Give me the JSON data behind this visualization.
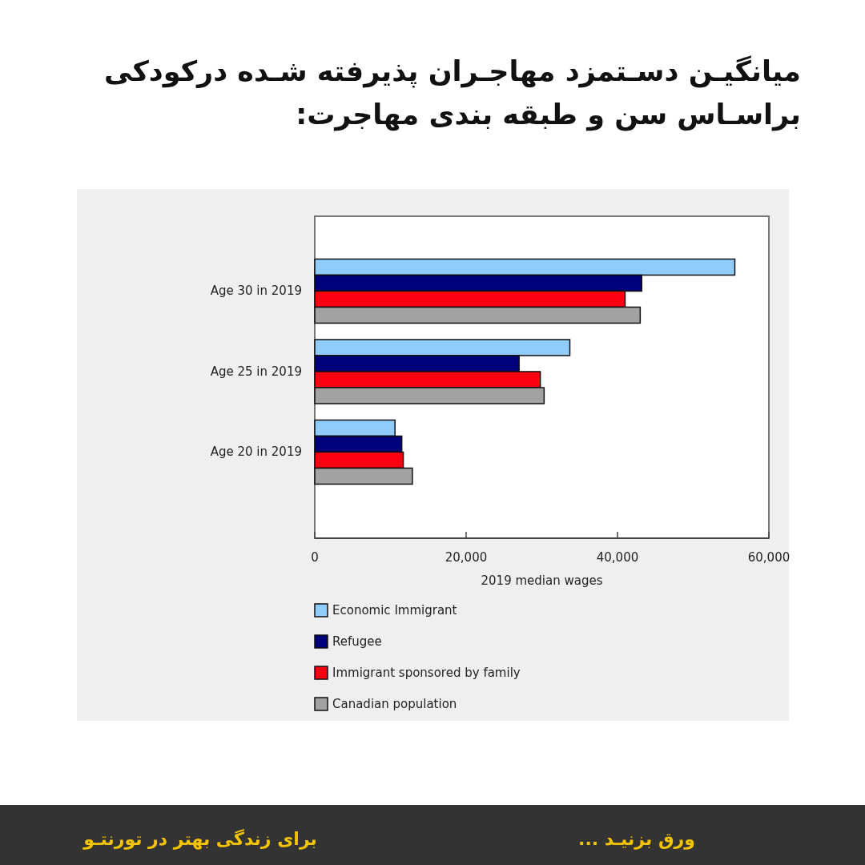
{
  "chart_data": {
    "type": "bar",
    "orientation": "horizontal",
    "title": "میانگیـن دسـتمزد مهاجـران پذیرفته شـده درکودکی براسـاس سن و طبقه بندی مهاجرت:",
    "xlabel": "2019 median wages",
    "categories": [
      "Age 30 in 2019",
      "Age 25 in 2019",
      "Age 20 in 2019"
    ],
    "series": [
      {
        "name": "Economic Immigrant",
        "color": "#8fccfc",
        "values": [
          55500,
          33700,
          10600
        ]
      },
      {
        "name": "Refugee",
        "color": "#00007b",
        "values": [
          43200,
          27000,
          11500
        ]
      },
      {
        "name": "Immigrant sponsored by family",
        "color": "#ff0012",
        "values": [
          41000,
          29800,
          11700
        ]
      },
      {
        "name": "Canadian population",
        "color": "#a2a2a2",
        "values": [
          43000,
          30300,
          12900
        ]
      }
    ],
    "xlim": [
      0,
      60000
    ],
    "xticks": [
      0,
      {
        "value": 20000,
        "label": "20,000"
      },
      {
        "value": 40000,
        "label": "40,000"
      },
      {
        "value": 60000,
        "label": "60,000"
      }
    ],
    "legend": "bottom",
    "annotations": [
      "ورق بزنیـد ...",
      "برای زندگی بهتر در تورنتـو"
    ]
  }
}
